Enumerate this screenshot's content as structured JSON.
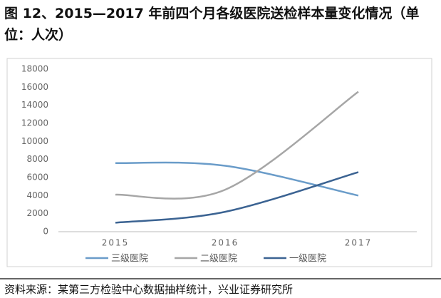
{
  "chart_data": {
    "type": "line",
    "title": "图 12、2015—2017 年前四个月各级医院送检样本量变化情况（单位：人次）",
    "source": "资料来源：某第三方检验中心数据抽样统计，兴业证券研究所",
    "categories": [
      "2015",
      "2016",
      "2017"
    ],
    "series": [
      {
        "name": "三级医院",
        "color": "#6a9cc9",
        "values": [
          7600,
          7300,
          4000
        ]
      },
      {
        "name": "二级医院",
        "color": "#a6a6a6",
        "values": [
          4100,
          4650,
          15500
        ]
      },
      {
        "name": "一级医院",
        "color": "#3b6392",
        "values": [
          1000,
          2200,
          6600
        ]
      }
    ],
    "ylim": [
      0,
      18000
    ],
    "yticks": [
      0,
      2000,
      4000,
      6000,
      8000,
      10000,
      12000,
      14000,
      16000,
      18000
    ],
    "grid": false,
    "smooth": true,
    "legend": "bottom"
  }
}
